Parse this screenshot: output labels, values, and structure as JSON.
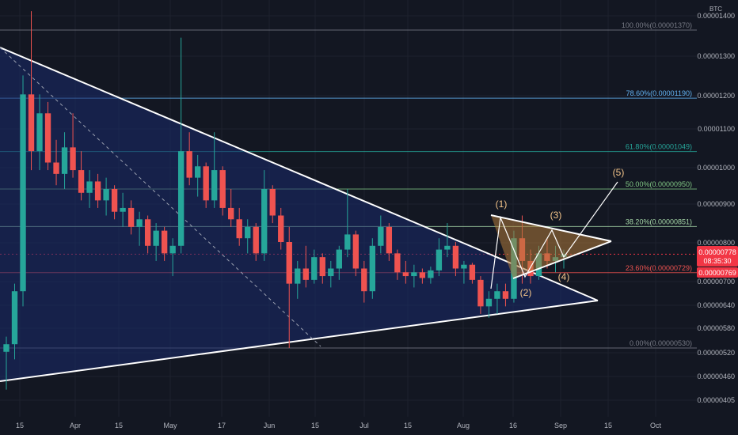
{
  "chart_data": {
    "type": "candlestick",
    "currency": "BTC",
    "y_ticks": [
      "0.00001400",
      "0.00001300",
      "0.00001200",
      "0.00001100",
      "0.00001000",
      "0.00000900",
      "0.00000800",
      "0.00000700",
      "0.00000640",
      "0.00000580",
      "0.00000520",
      "0.00000460",
      "0.00000405"
    ],
    "x_ticks": [
      "15",
      "Apr",
      "15",
      "May",
      "17",
      "Jun",
      "15",
      "Jul",
      "15",
      "Aug",
      "16",
      "Sep",
      "15",
      "Oct"
    ],
    "fib_levels": [
      {
        "label": "100.00%(0.00001370)",
        "price": 1.37e-05,
        "color": "#787b86"
      },
      {
        "label": "78.60%(0.00001190)",
        "price": 1.19e-05,
        "color": "#64b5f6"
      },
      {
        "label": "61.80%(0.00001049)",
        "price": 1.049e-05,
        "color": "#26a69a"
      },
      {
        "label": "50.00%(0.00000950)",
        "price": 9.5e-06,
        "color": "#81c784"
      },
      {
        "label": "38.20%(0.00000851)",
        "price": 8.51e-06,
        "color": "#a5d6a7"
      },
      {
        "label": "23.60%(0.00000729)",
        "price": 7.29e-06,
        "color": "#ef5350"
      },
      {
        "label": "0.00%(0.00000530)",
        "price": 5.3e-06,
        "color": "#787b86"
      }
    ],
    "wave_labels": [
      "(1)",
      "(2)",
      "(3)",
      "(4)",
      "(5)"
    ],
    "current_price": {
      "price": "0.00000778",
      "countdown": "08:35:30",
      "color": "#f23645"
    },
    "second_price": {
      "price": "0.00000769",
      "color": "#f23645"
    },
    "candle_colors": {
      "up": "#26a69a",
      "down": "#ef5350"
    },
    "series": [
      {
        "x": 0,
        "o": 520,
        "h": 560,
        "l": 420,
        "c": 540
      },
      {
        "x": 1,
        "o": 540,
        "h": 700,
        "l": 500,
        "c": 680
      },
      {
        "x": 2,
        "o": 680,
        "h": 1250,
        "l": 640,
        "c": 1200
      },
      {
        "x": 3,
        "o": 1200,
        "h": 1420,
        "l": 1000,
        "c": 1050
      },
      {
        "x": 4,
        "o": 1050,
        "h": 1200,
        "l": 1000,
        "c": 1150
      },
      {
        "x": 5,
        "o": 1150,
        "h": 1180,
        "l": 1000,
        "c": 1020
      },
      {
        "x": 6,
        "o": 1020,
        "h": 1080,
        "l": 960,
        "c": 990
      },
      {
        "x": 7,
        "o": 990,
        "h": 1100,
        "l": 950,
        "c": 1060
      },
      {
        "x": 8,
        "o": 1060,
        "h": 1150,
        "l": 980,
        "c": 1000
      },
      {
        "x": 9,
        "o": 1000,
        "h": 1050,
        "l": 920,
        "c": 940
      },
      {
        "x": 10,
        "o": 940,
        "h": 1000,
        "l": 900,
        "c": 970
      },
      {
        "x": 11,
        "o": 970,
        "h": 990,
        "l": 900,
        "c": 920
      },
      {
        "x": 12,
        "o": 920,
        "h": 980,
        "l": 880,
        "c": 950
      },
      {
        "x": 13,
        "o": 950,
        "h": 960,
        "l": 870,
        "c": 890
      },
      {
        "x": 14,
        "o": 890,
        "h": 940,
        "l": 850,
        "c": 900
      },
      {
        "x": 15,
        "o": 900,
        "h": 920,
        "l": 830,
        "c": 850
      },
      {
        "x": 16,
        "o": 850,
        "h": 890,
        "l": 800,
        "c": 870
      },
      {
        "x": 17,
        "o": 870,
        "h": 880,
        "l": 780,
        "c": 800
      },
      {
        "x": 18,
        "o": 800,
        "h": 860,
        "l": 760,
        "c": 840
      },
      {
        "x": 19,
        "o": 840,
        "h": 850,
        "l": 760,
        "c": 780
      },
      {
        "x": 20,
        "o": 780,
        "h": 820,
        "l": 720,
        "c": 800
      },
      {
        "x": 21,
        "o": 800,
        "h": 1350,
        "l": 780,
        "c": 1050
      },
      {
        "x": 22,
        "o": 1050,
        "h": 1100,
        "l": 960,
        "c": 980
      },
      {
        "x": 23,
        "o": 980,
        "h": 1040,
        "l": 930,
        "c": 1010
      },
      {
        "x": 24,
        "o": 1010,
        "h": 1020,
        "l": 900,
        "c": 920
      },
      {
        "x": 25,
        "o": 920,
        "h": 1100,
        "l": 900,
        "c": 1000
      },
      {
        "x": 26,
        "o": 1000,
        "h": 1010,
        "l": 880,
        "c": 900
      },
      {
        "x": 27,
        "o": 900,
        "h": 950,
        "l": 850,
        "c": 870
      },
      {
        "x": 28,
        "o": 870,
        "h": 900,
        "l": 800,
        "c": 820
      },
      {
        "x": 29,
        "o": 820,
        "h": 870,
        "l": 780,
        "c": 850
      },
      {
        "x": 30,
        "o": 850,
        "h": 860,
        "l": 760,
        "c": 780
      },
      {
        "x": 31,
        "o": 780,
        "h": 1000,
        "l": 760,
        "c": 950
      },
      {
        "x": 32,
        "o": 950,
        "h": 960,
        "l": 860,
        "c": 880
      },
      {
        "x": 33,
        "o": 880,
        "h": 900,
        "l": 790,
        "c": 810
      },
      {
        "x": 34,
        "o": 810,
        "h": 850,
        "l": 530,
        "c": 700
      },
      {
        "x": 35,
        "o": 700,
        "h": 760,
        "l": 660,
        "c": 740
      },
      {
        "x": 36,
        "o": 740,
        "h": 800,
        "l": 690,
        "c": 710
      },
      {
        "x": 37,
        "o": 710,
        "h": 790,
        "l": 700,
        "c": 770
      },
      {
        "x": 38,
        "o": 770,
        "h": 780,
        "l": 700,
        "c": 720
      },
      {
        "x": 39,
        "o": 720,
        "h": 760,
        "l": 690,
        "c": 740
      },
      {
        "x": 40,
        "o": 740,
        "h": 800,
        "l": 710,
        "c": 790
      },
      {
        "x": 41,
        "o": 790,
        "h": 950,
        "l": 770,
        "c": 830
      },
      {
        "x": 42,
        "o": 830,
        "h": 840,
        "l": 720,
        "c": 740
      },
      {
        "x": 43,
        "o": 740,
        "h": 760,
        "l": 650,
        "c": 680
      },
      {
        "x": 44,
        "o": 680,
        "h": 820,
        "l": 660,
        "c": 800
      },
      {
        "x": 45,
        "o": 800,
        "h": 880,
        "l": 780,
        "c": 850
      },
      {
        "x": 46,
        "o": 850,
        "h": 860,
        "l": 760,
        "c": 780
      },
      {
        "x": 47,
        "o": 780,
        "h": 790,
        "l": 710,
        "c": 730
      },
      {
        "x": 48,
        "o": 730,
        "h": 760,
        "l": 700,
        "c": 720
      },
      {
        "x": 49,
        "o": 720,
        "h": 750,
        "l": 690,
        "c": 730
      },
      {
        "x": 50,
        "o": 730,
        "h": 740,
        "l": 700,
        "c": 715
      },
      {
        "x": 51,
        "o": 715,
        "h": 745,
        "l": 700,
        "c": 735
      },
      {
        "x": 52,
        "o": 735,
        "h": 820,
        "l": 720,
        "c": 790
      },
      {
        "x": 53,
        "o": 790,
        "h": 860,
        "l": 770,
        "c": 800
      },
      {
        "x": 54,
        "o": 800,
        "h": 810,
        "l": 720,
        "c": 740
      },
      {
        "x": 55,
        "o": 740,
        "h": 760,
        "l": 700,
        "c": 750
      },
      {
        "x": 56,
        "o": 750,
        "h": 755,
        "l": 700,
        "c": 710
      },
      {
        "x": 57,
        "o": 710,
        "h": 720,
        "l": 620,
        "c": 640
      },
      {
        "x": 58,
        "o": 640,
        "h": 680,
        "l": 610,
        "c": 660
      },
      {
        "x": 59,
        "o": 660,
        "h": 700,
        "l": 620,
        "c": 680
      },
      {
        "x": 60,
        "o": 680,
        "h": 700,
        "l": 640,
        "c": 660
      },
      {
        "x": 61,
        "o": 660,
        "h": 840,
        "l": 650,
        "c": 820
      },
      {
        "x": 62,
        "o": 820,
        "h": 880,
        "l": 700,
        "c": 760
      },
      {
        "x": 63,
        "o": 760,
        "h": 790,
        "l": 700,
        "c": 720
      },
      {
        "x": 64,
        "o": 720,
        "h": 800,
        "l": 710,
        "c": 780
      },
      {
        "x": 65,
        "o": 780,
        "h": 820,
        "l": 740,
        "c": 760
      },
      {
        "x": 66,
        "o": 760,
        "h": 800,
        "l": 730,
        "c": 770
      },
      {
        "x": 67,
        "o": 770,
        "h": 790,
        "l": 740,
        "c": 778
      }
    ]
  }
}
